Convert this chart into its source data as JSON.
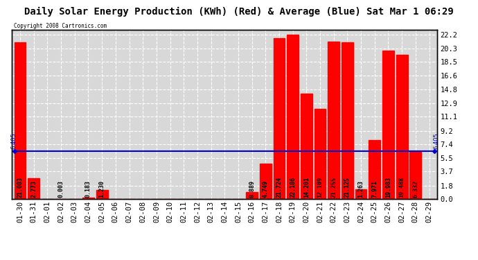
{
  "title": "Daily Solar Energy Production (KWh) (Red) & Average (Blue) Sat Mar 1 06:29",
  "copyright": "Copyright 2008 Cartronics.com",
  "average": 6.405,
  "categories": [
    "01-30",
    "01-31",
    "02-01",
    "02-02",
    "02-03",
    "02-04",
    "02-05",
    "02-06",
    "02-07",
    "02-08",
    "02-09",
    "02-10",
    "02-11",
    "02-12",
    "02-13",
    "02-14",
    "02-15",
    "02-16",
    "02-17",
    "02-18",
    "02-19",
    "02-20",
    "02-21",
    "02-22",
    "02-23",
    "02-24",
    "02-25",
    "02-26",
    "02-27",
    "02-28",
    "02-29"
  ],
  "values": [
    21.083,
    2.773,
    0.0,
    0.003,
    0.0,
    0.183,
    1.23,
    0.0,
    0.0,
    0.0,
    0.0,
    0.0,
    0.0,
    0.0,
    0.0,
    0.0,
    0.0,
    0.889,
    4.749,
    21.724,
    22.186,
    14.201,
    12.109,
    21.255,
    21.125,
    1.263,
    7.971,
    19.983,
    19.488,
    6.332,
    0.0
  ],
  "bar_color": "#ff0000",
  "avg_line_color": "#0000cd",
  "background_color": "#ffffff",
  "plot_bg_color": "#d8d8d8",
  "grid_color": "#ffffff",
  "yticks_right": [
    0.0,
    1.8,
    3.7,
    5.5,
    7.4,
    9.2,
    11.1,
    12.9,
    14.8,
    16.6,
    18.5,
    20.3,
    22.2
  ],
  "ylim": [
    0,
    22.8
  ],
  "title_fontsize": 10,
  "tick_fontsize": 7.5,
  "label_fontsize": 6,
  "bar_width": 0.85
}
